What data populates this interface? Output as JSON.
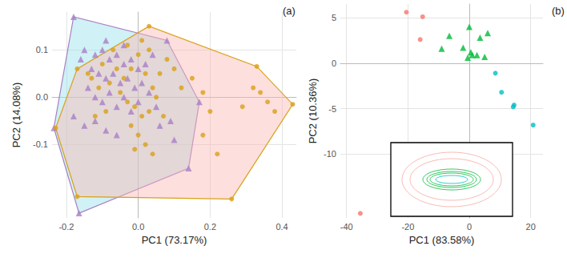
{
  "chart_data": [
    {
      "type": "hull",
      "title": "(a)",
      "x_label": "PC1 (73.17%)",
      "y_label": "PC2 (14.08%)",
      "xlim": [
        -0.24,
        0.44
      ],
      "ylim": [
        -0.255,
        0.18
      ],
      "xticks": [
        -0.2,
        {
          "value": 0,
          "label": "0.0"
        },
        0.2,
        0.4
      ],
      "yticks": [
        -0.1,
        {
          "value": 0,
          "label": "0.0"
        },
        0.1
      ],
      "grid": true,
      "series": [
        {
          "color": "#a77fc5",
          "marker": "triangle",
          "values": [
            [
              -0.18,
              0.17
            ],
            [
              -0.235,
              -0.065
            ],
            [
              -0.165,
              -0.245
            ],
            [
              0.14,
              -0.15
            ],
            [
              0.17,
              -0.01
            ],
            [
              0.08,
              0.12
            ],
            [
              -0.15,
              0.1
            ],
            [
              -0.12,
              0.09
            ],
            [
              -0.1,
              0.1
            ],
            [
              -0.08,
              0.08
            ],
            [
              -0.06,
              0.09
            ],
            [
              -0.04,
              0.07
            ],
            [
              -0.02,
              0.08
            ],
            [
              0.0,
              0.06
            ],
            [
              0.02,
              0.07
            ],
            [
              -0.13,
              0.06
            ],
            [
              -0.11,
              0.05
            ],
            [
              -0.09,
              0.04
            ],
            [
              -0.07,
              0.05
            ],
            [
              -0.05,
              0.03
            ],
            [
              -0.03,
              0.04
            ],
            [
              -0.01,
              0.02
            ],
            [
              0.01,
              0.03
            ],
            [
              0.03,
              0.01
            ],
            [
              -0.14,
              0.02
            ],
            [
              -0.12,
              0.0
            ],
            [
              -0.1,
              -0.01
            ],
            [
              -0.08,
              0.01
            ],
            [
              -0.06,
              -0.02
            ],
            [
              -0.04,
              0.0
            ],
            [
              -0.02,
              -0.03
            ],
            [
              0.0,
              -0.01
            ],
            [
              0.05,
              -0.02
            ],
            [
              -0.18,
              -0.04
            ],
            [
              -0.15,
              -0.06
            ],
            [
              -0.12,
              -0.05
            ],
            [
              -0.09,
              -0.07
            ],
            [
              -0.06,
              -0.08
            ],
            [
              0.06,
              -0.06
            ],
            [
              0.09,
              -0.05
            ],
            [
              0.1,
              -0.09
            ],
            [
              -0.04,
              0.11
            ],
            [
              -0.09,
              0.12
            ],
            [
              0.04,
              0.09
            ],
            [
              -0.16,
              0.08
            ]
          ]
        },
        {
          "color": "#d9a016",
          "marker": "circle",
          "values": [
            [
              0.03,
              0.15
            ],
            [
              0.33,
              0.065
            ],
            [
              0.43,
              -0.015
            ],
            [
              0.26,
              -0.215
            ],
            [
              -0.17,
              -0.21
            ],
            [
              -0.23,
              -0.065
            ],
            [
              -0.17,
              0.06
            ],
            [
              0.32,
              0.02
            ],
            [
              0.34,
              0.01
            ],
            [
              0.36,
              -0.01
            ],
            [
              0.38,
              -0.03
            ],
            [
              0.29,
              -0.02
            ],
            [
              0.18,
              0.01
            ],
            [
              0.2,
              -0.03
            ],
            [
              0.15,
              0.04
            ],
            [
              0.12,
              0.02
            ],
            [
              0.1,
              0.06
            ],
            [
              0.08,
              0.08
            ],
            [
              0.06,
              0.05
            ],
            [
              0.04,
              0.02
            ],
            [
              0.02,
              0.05
            ],
            [
              0.0,
              0.09
            ],
            [
              -0.02,
              0.06
            ],
            [
              -0.04,
              0.04
            ],
            [
              -0.06,
              0.06
            ],
            [
              -0.08,
              0.03
            ],
            [
              -0.1,
              0.07
            ],
            [
              -0.11,
              0.02
            ],
            [
              -0.13,
              0.04
            ],
            [
              -0.07,
              0.1
            ],
            [
              -0.05,
              0.01
            ],
            [
              -0.03,
              -0.01
            ],
            [
              -0.01,
              -0.02
            ],
            [
              0.01,
              -0.04
            ],
            [
              0.03,
              -0.03
            ],
            [
              0.05,
              0.0
            ],
            [
              0.07,
              -0.04
            ],
            [
              -0.09,
              -0.03
            ],
            [
              -0.12,
              -0.04
            ],
            [
              -0.14,
              0.05
            ],
            [
              -0.02,
              -0.06
            ],
            [
              0.0,
              -0.08
            ],
            [
              0.02,
              -0.1
            ],
            [
              0.04,
              -0.12
            ],
            [
              -0.01,
              -0.11
            ],
            [
              0.01,
              0.12
            ],
            [
              0.03,
              0.1
            ],
            [
              -0.03,
              0.11
            ],
            [
              0.22,
              -0.12
            ],
            [
              0.18,
              -0.08
            ]
          ]
        }
      ]
    },
    {
      "type": "scatter",
      "title": "(b)",
      "x_label": "PC1 (83.58%)",
      "y_label": "PC2 (10.36%)",
      "xlim": [
        -42,
        24
      ],
      "ylim": [
        -17,
        6.5
      ],
      "xticks": [
        -40,
        -20,
        0,
        20
      ],
      "yticks": [
        -10,
        -5,
        0,
        5
      ],
      "grid": true,
      "series": [
        {
          "color": "#f8766d",
          "marker": "circle",
          "values": [
            [
              -20.5,
              5.6
            ],
            [
              -15.2,
              5.1
            ],
            [
              -16,
              2.6
            ],
            [
              -35.5,
              -16.5
            ]
          ]
        },
        {
          "color": "#00ba38",
          "marker": "triangle",
          "values": [
            [
              -9,
              1.6
            ],
            [
              -6.5,
              3.0
            ],
            [
              0,
              4.0
            ],
            [
              3.5,
              2.8
            ],
            [
              6,
              3.3
            ],
            [
              -2,
              1.7
            ],
            [
              0.5,
              1.2
            ],
            [
              1,
              0.9
            ],
            [
              -0.5,
              0.6
            ],
            [
              2.5,
              0.9
            ],
            [
              5,
              0.7
            ]
          ]
        },
        {
          "color": "#00bfc4",
          "marker": "circle",
          "values": [
            [
              8.5,
              -1.1
            ],
            [
              10.5,
              -3.2
            ],
            [
              14.3,
              -4.8
            ],
            [
              14.6,
              -4.6
            ],
            [
              20.8,
              -6.8
            ]
          ]
        }
      ]
    }
  ]
}
